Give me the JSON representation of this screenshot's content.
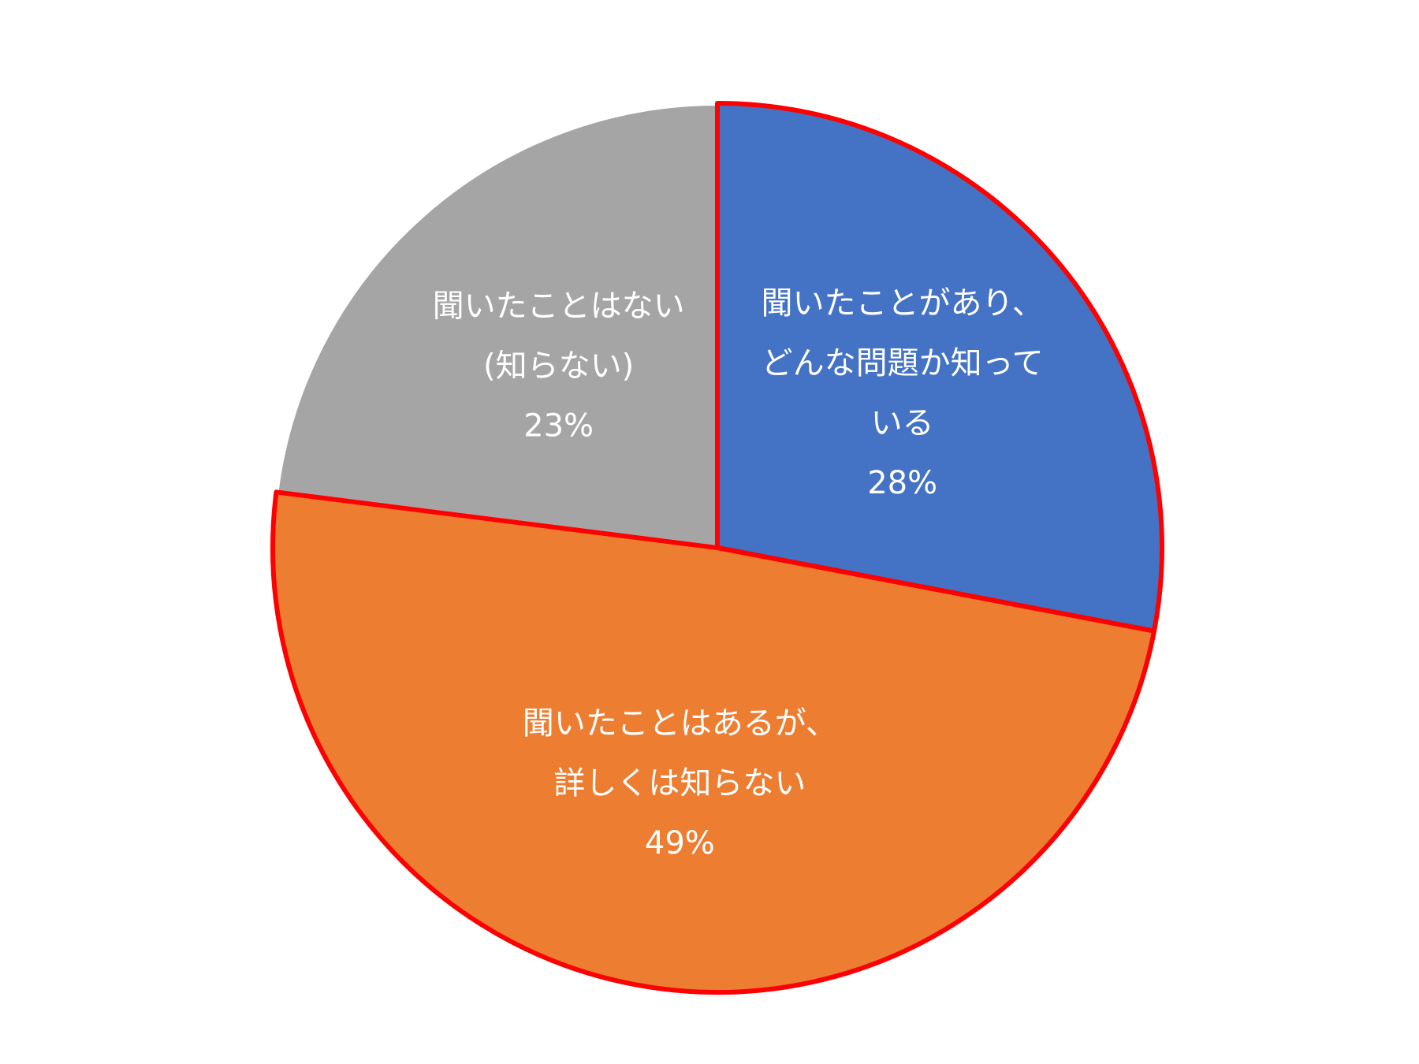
{
  "chart_data": {
    "type": "pie",
    "categories": [
      "聞いたことがあり、\nどんな問題か知って\nいる",
      "聞いたことはあるが、\n詳しくは知らない",
      "聞いたことはない\n(知らない)"
    ],
    "values": [
      28,
      49,
      23
    ],
    "value_labels": [
      "28%",
      "49%",
      "23%"
    ],
    "colors": [
      "#4472c4",
      "#ed7d31",
      "#a5a5a5"
    ],
    "edgecolors": [
      "#ff0000",
      "#ff0000",
      "#ffffff"
    ]
  }
}
